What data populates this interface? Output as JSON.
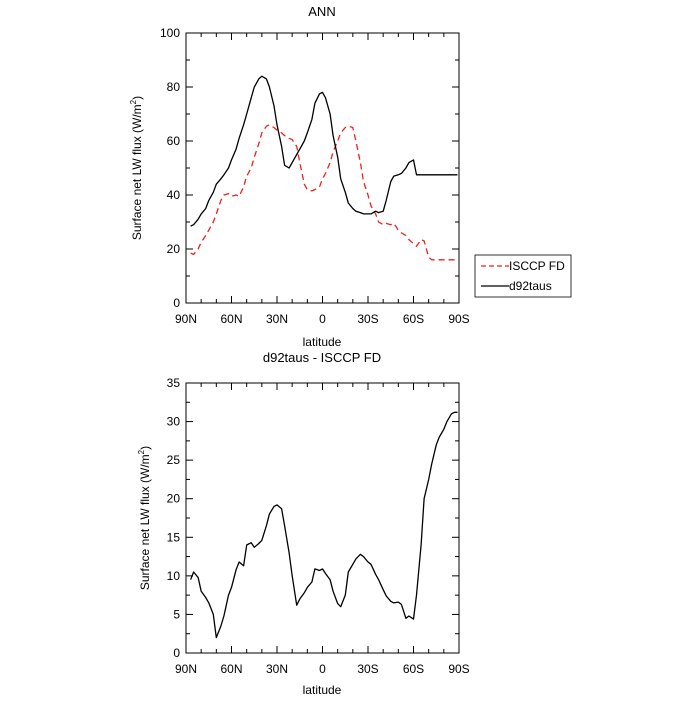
{
  "chart_data": [
    {
      "type": "line",
      "title": "ANN",
      "xlabel": "latitude",
      "ylabel": "Surface net LW flux (W/m²)",
      "ylabel_main": "Surface net LW flux (W/m",
      "ylabel_sup": "2",
      "ylabel_tail": ")",
      "xlim": [
        90,
        -90
      ],
      "ylim": [
        0,
        100
      ],
      "xticks": [
        {
          "value": 90,
          "label": "90N"
        },
        {
          "value": 60,
          "label": "60N"
        },
        {
          "value": 30,
          "label": "30N"
        },
        {
          "value": 0,
          "label": "0"
        },
        {
          "value": -30,
          "label": "30S"
        },
        {
          "value": -60,
          "label": "60S"
        },
        {
          "value": -90,
          "label": "90S"
        }
      ],
      "yticks": [
        0,
        20,
        40,
        60,
        80,
        100
      ],
      "grid": false,
      "legend_position": "outside-right",
      "series": [
        {
          "name": "ISCCP FD",
          "color": "#e8231e",
          "dash": true,
          "x": [
            87,
            85,
            82,
            80,
            77,
            75,
            72,
            70,
            67,
            65,
            62,
            60,
            57,
            55,
            52,
            50,
            47,
            45,
            42,
            40,
            37,
            35,
            32,
            30,
            27,
            25,
            22,
            20,
            17,
            15,
            12,
            10,
            7,
            5,
            2,
            0,
            -2,
            -5,
            -7,
            -10,
            -12,
            -15,
            -17,
            -20,
            -22,
            -25,
            -27,
            -30,
            -32,
            -35,
            -37,
            -40,
            -42,
            -45,
            -47,
            -50,
            -52,
            -55,
            -57,
            -60,
            -62,
            -65,
            -67,
            -70,
            -72,
            -75,
            -77,
            -80,
            -82,
            -85,
            -87,
            -89
          ],
          "y": [
            18.5,
            18,
            20,
            22.5,
            25,
            27,
            30,
            33,
            38,
            40,
            40.5,
            39.5,
            40,
            39.5,
            43,
            47,
            50,
            54,
            59,
            63,
            65.5,
            66,
            65,
            64,
            63,
            62,
            61,
            60.5,
            58,
            52,
            44,
            42,
            41.5,
            42,
            43,
            46,
            48,
            52,
            56,
            60,
            63,
            65,
            65.5,
            65,
            60,
            52,
            45,
            40,
            36,
            33,
            30,
            29,
            29.5,
            29,
            29.5,
            27,
            26,
            25,
            23.5,
            22,
            21,
            23.5,
            23,
            17,
            16,
            16,
            16,
            16,
            16,
            16,
            16,
            16
          ]
        },
        {
          "name": "d92taus",
          "color": "#000000",
          "dash": false,
          "x": [
            87,
            85,
            82,
            80,
            77,
            75,
            72,
            70,
            67,
            65,
            62,
            60,
            57,
            55,
            52,
            50,
            47,
            45,
            42,
            40,
            37,
            35,
            32,
            30,
            27,
            25,
            22,
            20,
            17,
            15,
            12,
            10,
            7,
            5,
            2,
            0,
            -2,
            -5,
            -7,
            -10,
            -12,
            -15,
            -17,
            -20,
            -22,
            -25,
            -27,
            -30,
            -32,
            -35,
            -37,
            -40,
            -42,
            -45,
            -47,
            -50,
            -52,
            -55,
            -57,
            -60,
            -62,
            -65,
            -67,
            -70,
            -72,
            -75,
            -77,
            -80,
            -82,
            -85,
            -87,
            -89
          ],
          "y": [
            28.5,
            29,
            31,
            33,
            35,
            38,
            41,
            44,
            46,
            47.5,
            50,
            53,
            57,
            61,
            66,
            70,
            76,
            80,
            83,
            84,
            83,
            80,
            73,
            66,
            58,
            51,
            50,
            52,
            55,
            57,
            60,
            63,
            68,
            74,
            77.5,
            78,
            76,
            70,
            62,
            54,
            46,
            41,
            37,
            35,
            34,
            33.5,
            33,
            33,
            33,
            34,
            33.5,
            34,
            38,
            45,
            47,
            47.5,
            48,
            50,
            52,
            53,
            47.5,
            47.5,
            47.5,
            47.5,
            47.5,
            47.5,
            47.5,
            47.5,
            47.5,
            47.5,
            47.5,
            47.5
          ]
        }
      ]
    },
    {
      "type": "line",
      "title": "d92taus - ISCCP FD",
      "xlabel": "latitude",
      "ylabel": "Surface net LW flux (W/m²)",
      "ylabel_main": "Surface net LW flux (W/m",
      "ylabel_sup": "2",
      "ylabel_tail": ")",
      "xlim": [
        90,
        -90
      ],
      "ylim": [
        0,
        35
      ],
      "xticks": [
        {
          "value": 90,
          "label": "90N"
        },
        {
          "value": 60,
          "label": "60N"
        },
        {
          "value": 30,
          "label": "30N"
        },
        {
          "value": 0,
          "label": "0"
        },
        {
          "value": -30,
          "label": "30S"
        },
        {
          "value": -60,
          "label": "60S"
        },
        {
          "value": -90,
          "label": "90S"
        }
      ],
      "yticks": [
        0,
        5,
        10,
        15,
        20,
        25,
        30,
        35
      ],
      "grid": false,
      "series": [
        {
          "color": "#000000",
          "dash": false,
          "x": [
            87,
            85,
            82,
            80,
            77,
            75,
            72,
            70,
            67,
            65,
            62,
            60,
            57,
            55,
            52,
            50,
            47,
            45,
            42,
            40,
            37,
            35,
            32,
            30,
            27,
            25,
            22,
            20,
            17,
            15,
            12,
            10,
            7,
            5,
            2,
            0,
            -2,
            -5,
            -7,
            -10,
            -12,
            -15,
            -17,
            -20,
            -22,
            -25,
            -27,
            -30,
            -32,
            -35,
            -37,
            -40,
            -42,
            -45,
            -47,
            -50,
            -52,
            -55,
            -57,
            -60,
            -62,
            -65,
            -67,
            -70,
            -72,
            -75,
            -77,
            -80,
            -82,
            -85,
            -87,
            -89
          ],
          "y": [
            9.5,
            10.5,
            9.8,
            8,
            7.2,
            6.5,
            5,
            2,
            3.5,
            4.8,
            7.5,
            8.5,
            10.8,
            11.8,
            11.3,
            14,
            14.3,
            13.7,
            14.2,
            14.6,
            16.5,
            18,
            19,
            19.2,
            18.7,
            16.5,
            13,
            10,
            6.2,
            7,
            7.8,
            8.5,
            9.2,
            10.9,
            10.7,
            10.9,
            10.3,
            9.5,
            8,
            6.4,
            6,
            7.5,
            10.5,
            11.5,
            12.2,
            12.8,
            12.5,
            11.8,
            11.5,
            10.2,
            9.5,
            8.2,
            7.4,
            6.7,
            6.5,
            6.6,
            6.3,
            4.5,
            4.8,
            4.4,
            7.5,
            14,
            20,
            22.5,
            24.5,
            27,
            28,
            29,
            30,
            31,
            31.2,
            31.2
          ]
        }
      ]
    }
  ]
}
